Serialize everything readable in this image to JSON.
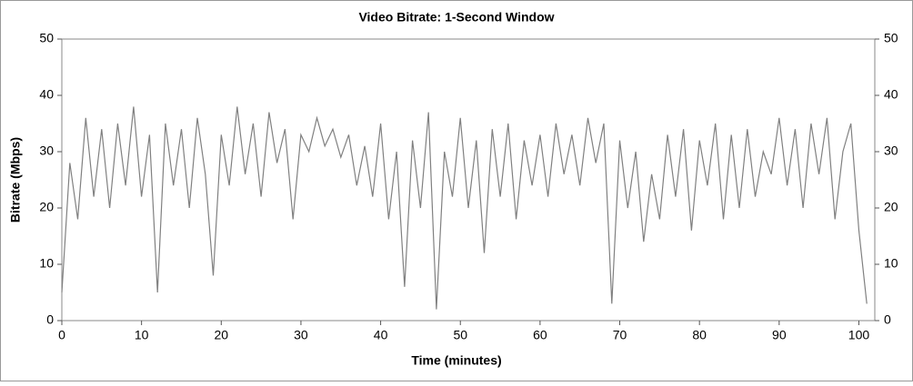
{
  "chart_data": {
    "type": "line",
    "title": "Video Bitrate: 1-Second Window",
    "xlabel": "Time (minutes)",
    "ylabel": "Bitrate (Mbps)",
    "x": [
      0,
      1,
      2,
      3,
      4,
      5,
      6,
      7,
      8,
      9,
      10,
      11,
      12,
      13,
      14,
      15,
      16,
      17,
      18,
      19,
      20,
      21,
      22,
      23,
      24,
      25,
      26,
      27,
      28,
      29,
      30,
      31,
      32,
      33,
      34,
      35,
      36,
      37,
      38,
      39,
      40,
      41,
      42,
      43,
      44,
      45,
      46,
      47,
      48,
      49,
      50,
      51,
      52,
      53,
      54,
      55,
      56,
      57,
      58,
      59,
      60,
      61,
      62,
      63,
      64,
      65,
      66,
      67,
      68,
      69,
      70,
      71,
      72,
      73,
      74,
      75,
      76,
      77,
      78,
      79,
      80,
      81,
      82,
      83,
      84,
      85,
      86,
      87,
      88,
      89,
      90,
      91,
      92,
      93,
      94,
      95,
      96,
      97,
      98,
      99,
      100,
      101
    ],
    "series": [
      {
        "name": "Bitrate",
        "color": "#808080",
        "values": [
          5,
          28,
          18,
          36,
          22,
          34,
          20,
          35,
          24,
          38,
          22,
          33,
          5,
          35,
          24,
          34,
          20,
          36,
          26,
          8,
          33,
          24,
          38,
          26,
          35,
          22,
          37,
          28,
          34,
          18,
          33,
          30,
          36,
          31,
          34,
          29,
          33,
          24,
          31,
          22,
          35,
          18,
          30,
          6,
          32,
          20,
          37,
          2,
          30,
          22,
          36,
          20,
          32,
          12,
          34,
          22,
          35,
          18,
          32,
          24,
          33,
          22,
          35,
          26,
          33,
          24,
          36,
          28,
          35,
          3,
          32,
          20,
          30,
          14,
          26,
          18,
          33,
          22,
          34,
          16,
          32,
          24,
          35,
          18,
          33,
          20,
          34,
          22,
          30,
          26,
          36,
          24,
          34,
          20,
          35,
          26,
          36,
          18,
          30,
          35,
          16,
          3
        ]
      }
    ],
    "xlim": [
      0,
      102
    ],
    "xticks": [
      0,
      10,
      20,
      30,
      40,
      50,
      60,
      70,
      80,
      90,
      100
    ],
    "ylim": [
      0,
      50
    ],
    "yticks": [
      0,
      10,
      20,
      30,
      40,
      50
    ],
    "y2lim": [
      0,
      50
    ],
    "y2ticks": [
      0,
      10,
      20,
      30,
      40,
      50
    ]
  }
}
